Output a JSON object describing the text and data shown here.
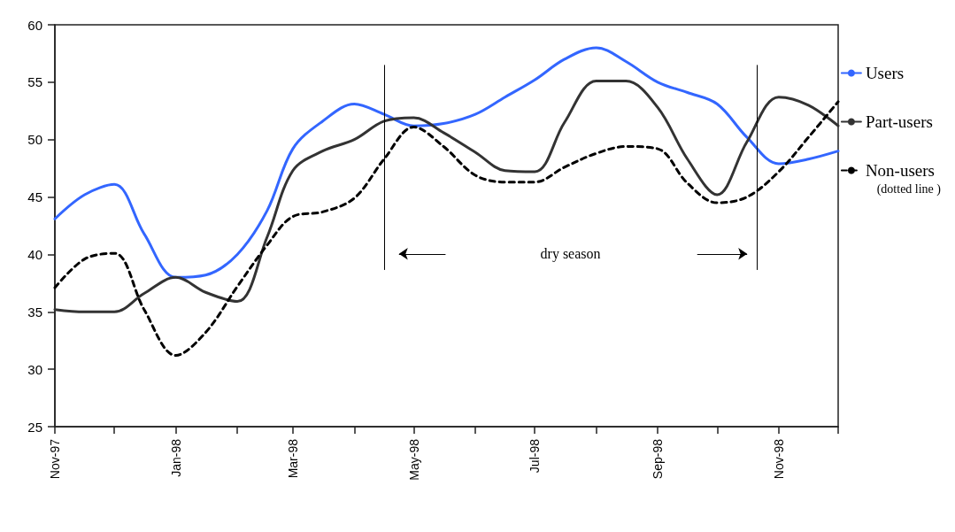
{
  "chart_data": {
    "type": "line",
    "x": [
      "1997-11-01",
      "1997-11-16",
      "1997-12-01",
      "1997-12-16",
      "1998-01-01",
      "1998-01-16",
      "1998-02-01",
      "1998-02-16",
      "1998-03-01",
      "1998-03-16",
      "1998-04-01",
      "1998-04-16",
      "1998-05-01",
      "1998-05-16",
      "1998-06-01",
      "1998-06-16",
      "1998-07-01",
      "1998-07-16",
      "1998-08-01",
      "1998-08-16",
      "1998-09-01",
      "1998-09-16",
      "1998-10-01",
      "1998-10-16",
      "1998-11-01",
      "1998-11-16",
      "1998-12-01"
    ],
    "series": [
      {
        "name": "Users",
        "color": "#3366ff",
        "line_style": "solid",
        "values": [
          43.1,
          45.2,
          46.1,
          41.8,
          38.0,
          38.2,
          40.0,
          43.8,
          49.2,
          51.6,
          53.1,
          52.2,
          51.2,
          51.4,
          52.2,
          53.7,
          55.2,
          57.0,
          58.0,
          56.8,
          55.0,
          54.1,
          53.1,
          50.2,
          47.9,
          48.3,
          49.0
        ]
      },
      {
        "name": "Part-users",
        "color": "#333333",
        "line_style": "solid",
        "values": [
          35.2,
          35.0,
          35.0,
          36.6,
          38.0,
          36.7,
          35.9,
          41.5,
          47.3,
          49.0,
          50.0,
          51.6,
          51.9,
          50.6,
          48.9,
          47.3,
          47.2,
          51.5,
          55.1,
          55.1,
          52.8,
          48.3,
          45.2,
          49.8,
          53.7,
          53.0,
          51.2
        ]
      },
      {
        "name": "Non-users",
        "color": "#000000",
        "line_style": "dashed",
        "values": [
          37.1,
          39.6,
          40.1,
          35.2,
          31.2,
          33.2,
          37.2,
          40.8,
          43.3,
          43.7,
          44.9,
          48.3,
          51.1,
          49.4,
          46.9,
          46.3,
          46.3,
          47.6,
          48.8,
          49.4,
          49.2,
          46.2,
          44.5,
          45.0,
          47.2,
          50.2,
          53.3
        ]
      }
    ],
    "xlim": [
      "1997-11-01",
      "1998-12-01"
    ],
    "xticks": [
      {
        "value": "1997-11-01",
        "label": "Nov-97"
      },
      {
        "value": "1997-12-01",
        "label": null
      },
      {
        "value": "1998-01-01",
        "label": "Jan-98"
      },
      {
        "value": "1998-02-01",
        "label": null
      },
      {
        "value": "1998-03-01",
        "label": "Mar-98"
      },
      {
        "value": "1998-04-01",
        "label": null
      },
      {
        "value": "1998-05-01",
        "label": "May-98"
      },
      {
        "value": "1998-06-01",
        "label": null
      },
      {
        "value": "1998-07-01",
        "label": "Jul-98"
      },
      {
        "value": "1998-08-01",
        "label": null
      },
      {
        "value": "1998-09-01",
        "label": "Sep-98"
      },
      {
        "value": "1998-10-01",
        "label": null
      },
      {
        "value": "1998-11-01",
        "label": "Nov-98"
      },
      {
        "value": "1998-12-01",
        "label": null
      }
    ],
    "ylim": [
      25,
      60
    ],
    "yticks": [
      25,
      30,
      35,
      40,
      45,
      50,
      55,
      60
    ],
    "ref_lines": [
      {
        "axis": "x",
        "value": "1998-04-16",
        "color": "#000000"
      },
      {
        "axis": "x",
        "value": "1998-10-21",
        "color": "#000000"
      }
    ],
    "annotations": [
      "dry season",
      "(dotted line )"
    ],
    "grid": false,
    "legend": "right",
    "marker": "none"
  }
}
